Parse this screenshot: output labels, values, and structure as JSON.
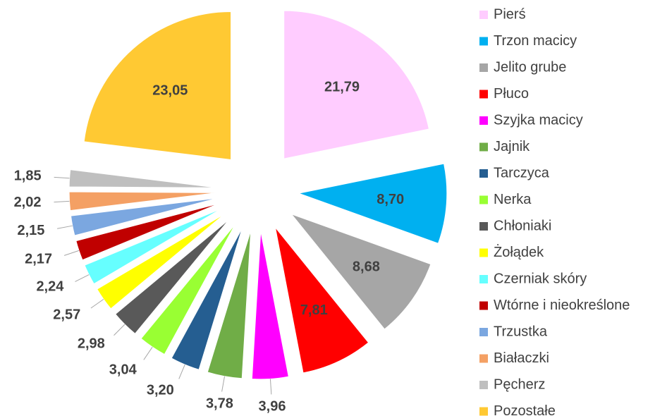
{
  "chart_data": {
    "type": "pie",
    "categories": [
      "Pierś",
      "Trzon macicy",
      "Jelito grube",
      "Płuco",
      "Szyjka macicy",
      "Jajnik",
      "Tarczyca",
      "Nerka",
      "Chłoniaki",
      "Żołądek",
      "Czerniak skóry",
      "Wtórne i nieokreślone",
      "Trzustka",
      "Białaczki",
      "Pęcherz",
      "Pozostałe"
    ],
    "values": [
      21.79,
      8.7,
      8.68,
      7.81,
      3.96,
      3.78,
      3.2,
      3.04,
      2.98,
      2.57,
      2.24,
      2.17,
      2.15,
      2.02,
      1.85,
      23.05
    ],
    "value_labels": [
      "21,79",
      "8,70",
      "8,68",
      "7,81",
      "3,96",
      "3,78",
      "3,20",
      "3,04",
      "2,98",
      "2,57",
      "2,24",
      "2,17",
      "2,15",
      "2,02",
      "1,85",
      "23,05"
    ],
    "colors": [
      "#ffccff",
      "#00b0f0",
      "#a6a6a6",
      "#ff0000",
      "#ff00ff",
      "#70ad47",
      "#255e91",
      "#99ff33",
      "#595959",
      "#ffff00",
      "#66ffff",
      "#c00000",
      "#7ba7e0",
      "#f4a064",
      "#bfbfbf",
      "#ffc933"
    ],
    "legend": "right"
  }
}
